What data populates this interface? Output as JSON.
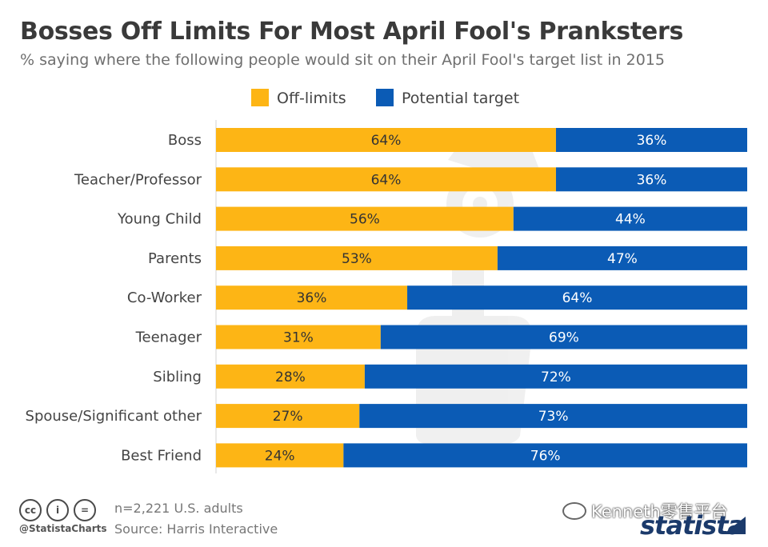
{
  "header": {
    "title": "Bosses Off Limits For Most April Fool's Pranksters",
    "subtitle": "% saying where the following people would sit on their April Fool's target list in 2015"
  },
  "chart_data": {
    "type": "bar",
    "orientation": "horizontal",
    "stacked": true,
    "categories": [
      "Boss",
      "Teacher/Professor",
      "Young Child",
      "Parents",
      "Co-Worker",
      "Teenager",
      "Sibling",
      "Spouse/Significant other",
      "Best Friend"
    ],
    "series": [
      {
        "name": "Off-limits",
        "color": "#FDB515",
        "values": [
          64,
          64,
          56,
          53,
          36,
          31,
          28,
          27,
          24
        ]
      },
      {
        "name": "Potential target",
        "color": "#0B5BB5",
        "values": [
          36,
          36,
          44,
          47,
          64,
          69,
          72,
          73,
          76
        ]
      }
    ],
    "value_suffix": "%",
    "xlim": [
      0,
      100
    ],
    "legend_position": "top",
    "grid": false
  },
  "footer": {
    "note": "n=2,221 U.S. adults",
    "source": "Source: Harris Interactive",
    "handle": "@StatistaCharts",
    "watermark": "Kenneth零售平台",
    "brand": "statista"
  }
}
